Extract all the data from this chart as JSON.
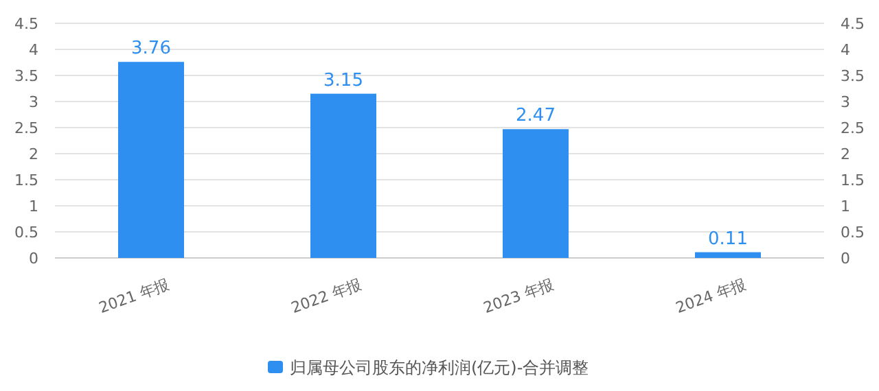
{
  "chart_data": {
    "type": "bar",
    "categories": [
      "2021 年报",
      "2022 年报",
      "2023 年报",
      "2024 年报"
    ],
    "series": [
      {
        "name": "归属母公司股东的净利润(亿元)-合并调整",
        "color": "#2f8ff0",
        "values": [
          3.76,
          3.15,
          2.47,
          0.11
        ]
      }
    ],
    "ylim": [
      0,
      4.5
    ],
    "yticks": [
      0,
      0.5,
      1,
      1.5,
      2,
      2.5,
      3,
      3.5,
      4,
      4.5
    ],
    "y2lim": [
      0,
      4.5
    ],
    "y2ticks": [
      0,
      0.5,
      1,
      1.5,
      2,
      2.5,
      3,
      3.5,
      4,
      4.5
    ],
    "grid": "y",
    "legend": "bottom",
    "data_labels": true
  }
}
